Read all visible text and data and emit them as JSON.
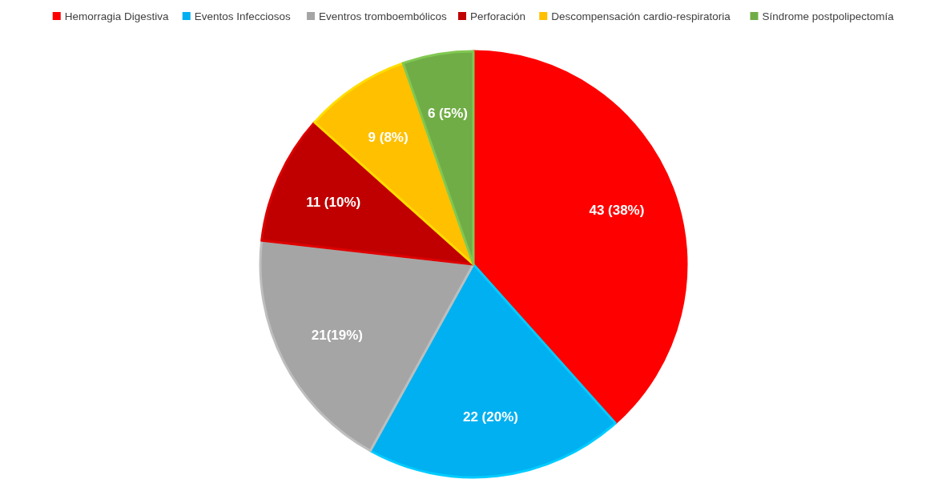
{
  "chart_data": {
    "type": "pie",
    "categories": [
      "Hemorragia Digestiva",
      "Eventos Infecciosos",
      "Eventros tromboembólicos",
      "Perforación",
      "Descompensación cardio-respiratoria",
      "Síndrome postpolipectomía"
    ],
    "values": [
      43,
      22,
      21,
      11,
      9,
      6
    ],
    "colors": [
      "#ff0000",
      "#00b0f0",
      "#a5a5a5",
      "#c00000",
      "#ffc000",
      "#70ad47"
    ],
    "value_labels": [
      "43 (38%)",
      "22 (20%)",
      "21(19%)",
      "11 (10%)",
      "9 (8%)",
      "6 (5%)"
    ],
    "legend": "top"
  }
}
